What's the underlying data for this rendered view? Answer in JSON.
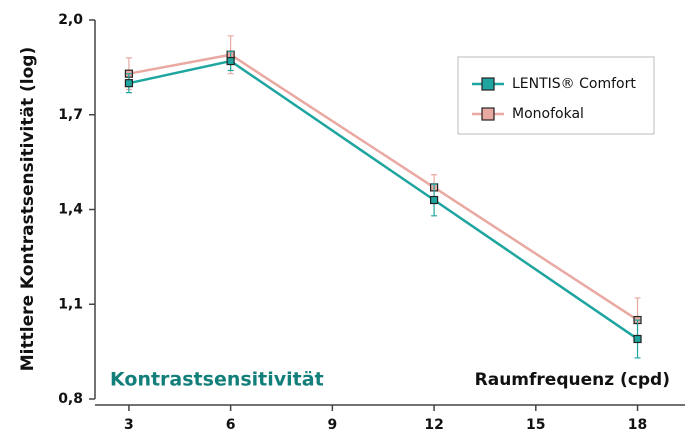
{
  "chart_data": {
    "type": "line",
    "y_label": "Mittlere Kontrastsensitivität (log)",
    "x_label": "Raumfrequenz (cpd)",
    "annotation": "Kontrastsensitivität",
    "x": [
      3,
      6,
      12,
      18
    ],
    "series": [
      {
        "name": "LENTIS® Comfort",
        "color": "#1fa59f",
        "values": [
          1.8,
          1.87,
          1.43,
          0.99
        ],
        "errors": [
          0.03,
          0.03,
          0.05,
          0.06
        ]
      },
      {
        "name": "Monofokal",
        "color": "#e9a9a2",
        "values": [
          1.83,
          1.89,
          1.47,
          1.05
        ],
        "errors": [
          0.05,
          0.06,
          0.04,
          0.07
        ]
      }
    ],
    "xlim": [
      2,
      19.4
    ],
    "xticks": [
      3,
      6,
      9,
      12,
      15,
      18
    ],
    "ylim": [
      0.8,
      2.0
    ],
    "yticks": [
      {
        "value": 0.8,
        "label": "0,8"
      },
      {
        "value": 1.1,
        "label": "1,1"
      },
      {
        "value": 1.4,
        "label": "1,4"
      },
      {
        "value": 1.7,
        "label": "1,7"
      },
      {
        "value": 2.0,
        "label": "2,0"
      }
    ],
    "legend": "upper right"
  }
}
